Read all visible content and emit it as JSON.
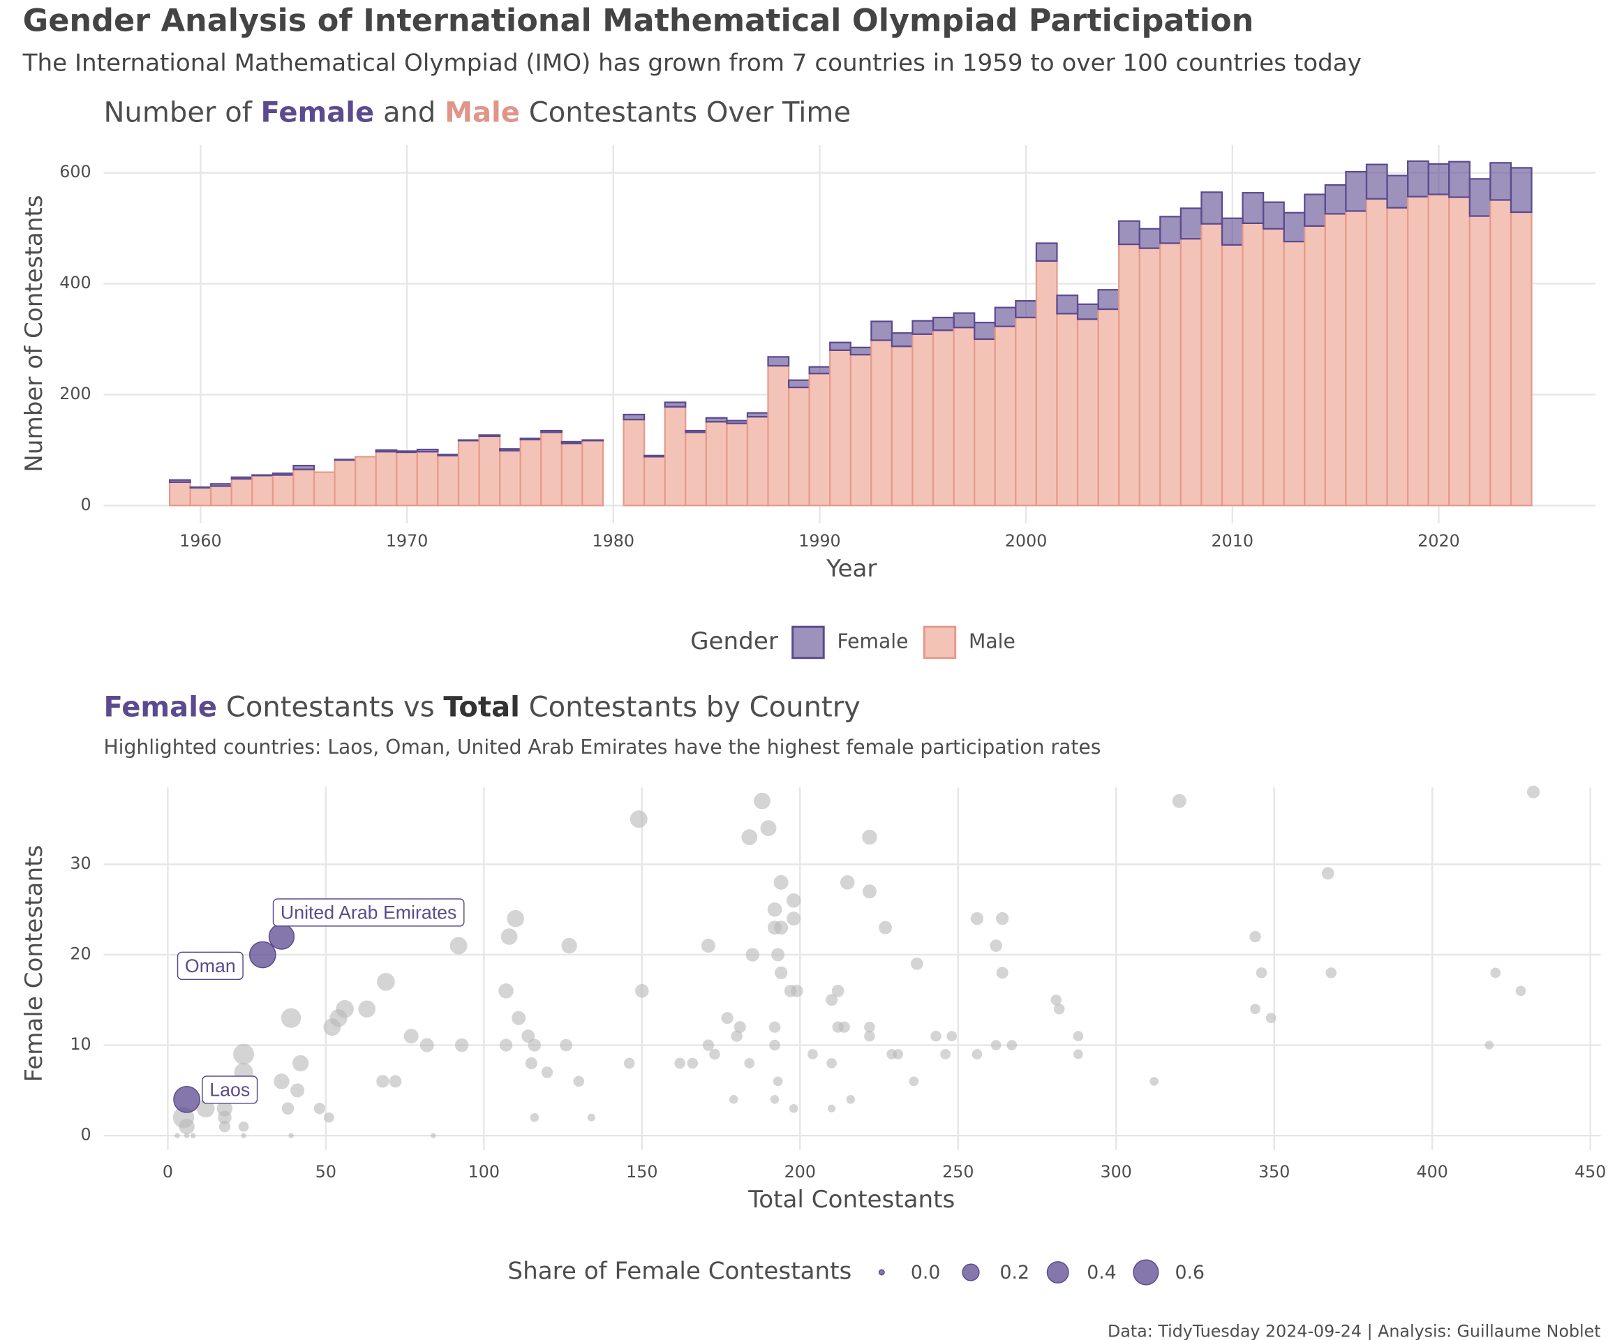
{
  "header": {
    "title": "Gender Analysis of International Mathematical Olympiad Participation",
    "subtitle": "The International Mathematical Olympiad (IMO) has grown from 7 countries in 1959 to over 100 countries today"
  },
  "chart_data": [
    {
      "type": "stacked-bar",
      "title_parts": [
        "Number of ",
        "Female",
        " and ",
        "Male",
        " Contestants Over Time"
      ],
      "x_label": "Year",
      "y_label": "Number of Contestants",
      "legend_title": "Gender",
      "x": [
        1959,
        1960,
        1961,
        1962,
        1963,
        1964,
        1965,
        1966,
        1967,
        1968,
        1969,
        1970,
        1971,
        1972,
        1973,
        1974,
        1975,
        1976,
        1977,
        1978,
        1979,
        1981,
        1982,
        1983,
        1984,
        1985,
        1986,
        1987,
        1988,
        1989,
        1990,
        1991,
        1992,
        1993,
        1994,
        1995,
        1996,
        1997,
        1998,
        1999,
        2000,
        2001,
        2002,
        2003,
        2004,
        2005,
        2006,
        2007,
        2008,
        2009,
        2010,
        2011,
        2012,
        2013,
        2014,
        2015,
        2016,
        2017,
        2018,
        2019,
        2020,
        2021,
        2022,
        2023,
        2024
      ],
      "series": [
        {
          "name": "Female",
          "color": "#5c4a8f",
          "values": [
            4,
            1,
            4,
            3,
            1,
            3,
            7,
            0,
            1,
            0,
            3,
            2,
            4,
            2,
            1,
            2,
            3,
            2,
            3,
            3,
            1,
            9,
            2,
            8,
            3,
            7,
            5,
            7,
            16,
            13,
            12,
            14,
            13,
            34,
            24,
            24,
            23,
            26,
            30,
            34,
            30,
            32,
            33,
            27,
            35,
            42,
            35,
            48,
            55,
            57,
            48,
            55,
            48,
            52,
            57,
            52,
            71,
            62,
            58,
            64,
            55,
            64,
            67,
            67,
            80
          ]
        },
        {
          "name": "Male",
          "color": "#e59a8b",
          "values": [
            42,
            32,
            35,
            48,
            54,
            55,
            65,
            60,
            82,
            88,
            97,
            96,
            97,
            90,
            117,
            125,
            99,
            119,
            132,
            112,
            117,
            155,
            88,
            178,
            132,
            151,
            148,
            160,
            252,
            213,
            238,
            280,
            272,
            298,
            287,
            309,
            316,
            321,
            300,
            323,
            339,
            441,
            346,
            336,
            354,
            471,
            464,
            473,
            481,
            508,
            470,
            509,
            499,
            476,
            504,
            526,
            531,
            553,
            537,
            557,
            561,
            556,
            522,
            551,
            529
          ]
        }
      ],
      "xlim": [
        1955.3,
        2027.6
      ],
      "ylim": [
        -32,
        650
      ],
      "xticks": [
        1960,
        1970,
        1980,
        1990,
        2000,
        2010,
        2020
      ],
      "yticks": [
        0,
        200,
        400,
        600
      ],
      "grid": true
    },
    {
      "type": "scatter",
      "title_parts": [
        "Female",
        " Contestants vs ",
        "Total",
        " Contestants by Country"
      ],
      "subtitle": "Highlighted countries: Laos, Oman, United Arab Emirates have the highest female participation rates",
      "x_label": "Total Contestants",
      "y_label": "Female Contestants",
      "legend_title": "Share of Female Contestants",
      "color": "#b8b8b8",
      "x": [
        432,
        320,
        188,
        190,
        184,
        222,
        149,
        367,
        215,
        194,
        222,
        198,
        192,
        198,
        110,
        256,
        264,
        227,
        192,
        194,
        344,
        108,
        92,
        127,
        171,
        262,
        193,
        185,
        237,
        194,
        264,
        346,
        368,
        420,
        69,
        107,
        150,
        197,
        199,
        212,
        428,
        210,
        281,
        56,
        63,
        282,
        344,
        39,
        54,
        111,
        177,
        349,
        52,
        181,
        214,
        212,
        222,
        180,
        77,
        114,
        192,
        222,
        243,
        248,
        288,
        82,
        93,
        107,
        116,
        126,
        171,
        192,
        262,
        267,
        418,
        24,
        173,
        204,
        229,
        231,
        246,
        256,
        288,
        42,
        115,
        146,
        162,
        166,
        184,
        210,
        120,
        24,
        36,
        68,
        72,
        130,
        193,
        236,
        312,
        41,
        48,
        38,
        179,
        192,
        216,
        12,
        18,
        198,
        210,
        5,
        51,
        116,
        134,
        18,
        6,
        18,
        24,
        3,
        6,
        8,
        24,
        39,
        84
      ],
      "y": [
        38,
        37,
        37,
        34,
        33,
        33,
        35,
        29,
        28,
        28,
        27,
        26,
        25,
        24,
        24,
        24,
        24,
        23,
        23,
        23,
        22,
        22,
        21,
        21,
        21,
        21,
        20,
        20,
        19,
        18,
        18,
        18,
        18,
        18,
        17,
        16,
        16,
        16,
        16,
        16,
        16,
        15,
        15,
        14,
        14,
        14,
        14,
        13,
        13,
        13,
        13,
        13,
        12,
        12,
        12,
        12,
        12,
        11,
        11,
        11,
        12,
        11,
        11,
        11,
        11,
        10,
        10,
        10,
        10,
        10,
        10,
        10,
        10,
        10,
        10,
        9,
        9,
        9,
        9,
        9,
        9,
        9,
        9,
        8,
        8,
        8,
        8,
        8,
        8,
        8,
        7,
        7,
        6,
        6,
        6,
        6,
        6,
        6,
        6,
        5,
        3,
        3,
        4,
        4,
        4,
        3,
        3,
        3,
        3,
        2,
        2,
        2,
        2,
        2,
        1,
        1,
        1,
        0,
        0,
        0,
        0,
        0,
        0
      ],
      "size": [
        0.09,
        0.12,
        0.2,
        0.18,
        0.18,
        0.15,
        0.23,
        0.08,
        0.13,
        0.14,
        0.12,
        0.13,
        0.13,
        0.12,
        0.22,
        0.09,
        0.09,
        0.1,
        0.12,
        0.12,
        0.06,
        0.2,
        0.23,
        0.17,
        0.12,
        0.08,
        0.1,
        0.11,
        0.08,
        0.09,
        0.07,
        0.05,
        0.05,
        0.04,
        0.25,
        0.15,
        0.11,
        0.08,
        0.08,
        0.08,
        0.04,
        0.07,
        0.05,
        0.25,
        0.22,
        0.05,
        0.04,
        0.33,
        0.24,
        0.12,
        0.07,
        0.04,
        0.23,
        0.07,
        0.06,
        0.06,
        0.05,
        0.06,
        0.14,
        0.1,
        0.06,
        0.05,
        0.05,
        0.04,
        0.04,
        0.12,
        0.11,
        0.09,
        0.09,
        0.08,
        0.06,
        0.05,
        0.04,
        0.04,
        0.02,
        0.38,
        0.05,
        0.04,
        0.04,
        0.04,
        0.04,
        0.04,
        0.03,
        0.19,
        0.07,
        0.05,
        0.05,
        0.05,
        0.04,
        0.04,
        0.06,
        0.29,
        0.17,
        0.09,
        0.08,
        0.05,
        0.03,
        0.03,
        0.02,
        0.12,
        0.06,
        0.08,
        0.02,
        0.02,
        0.02,
        0.25,
        0.17,
        0.02,
        0.01,
        0.4,
        0.04,
        0.02,
        0.01,
        0.11,
        0.17,
        0.06,
        0.04,
        0,
        0,
        0,
        0,
        0,
        0
      ],
      "highlights": {
        "labels": [
          "Laos",
          "Oman",
          "United Arab Emirates"
        ],
        "x": [
          6,
          30,
          36
        ],
        "y": [
          4,
          20,
          22
        ],
        "size": [
          0.67,
          0.67,
          0.61
        ],
        "color": "#5c4a8f"
      },
      "size_legend": [
        {
          "value": 0,
          "label": "0.0"
        },
        0.2,
        0.4,
        0.6
      ],
      "xlim": [
        -20.3,
        453.3
      ],
      "ylim": [
        -1.6,
        38.5
      ],
      "xticks": [
        0,
        50,
        100,
        150,
        200,
        250,
        300,
        350,
        400,
        450
      ],
      "yticks": [
        0,
        10,
        20,
        30
      ],
      "grid": true
    }
  ],
  "caption": "Data: TidyTuesday 2024-09-24 | Analysis: Guillaume Noblet"
}
